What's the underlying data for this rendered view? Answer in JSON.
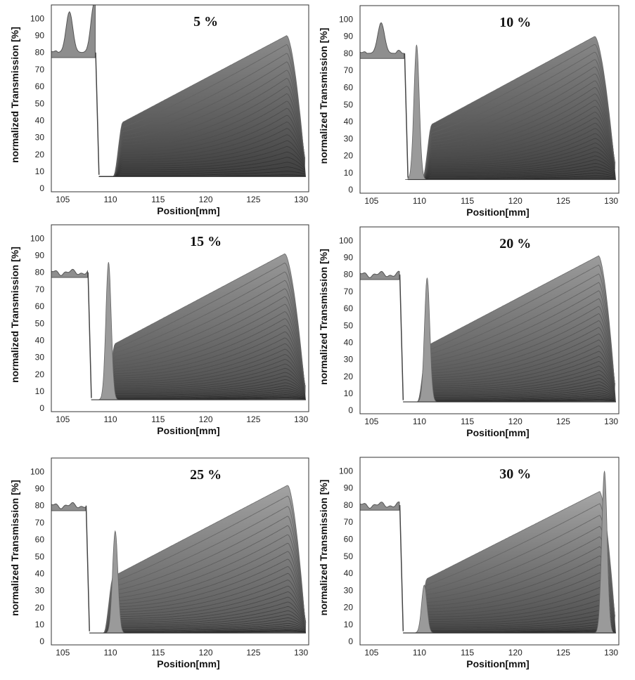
{
  "chart_data": [
    {
      "type": "line",
      "title": "5 %",
      "xlabel": "Position[mm]",
      "ylabel": "normalized Transmission [%]",
      "xlim": [
        103.8,
        130.8
      ],
      "ylim": [
        -2,
        108
      ],
      "xticks": [
        105,
        110,
        115,
        120,
        125,
        130
      ],
      "yticks": [
        0,
        10,
        20,
        30,
        40,
        50,
        60,
        70,
        80,
        90,
        100
      ],
      "profile": {
        "meniscus": 108.8,
        "base": 7,
        "peak_pos": 128.5,
        "peak_value": 90,
        "top_start": 68,
        "last_curve_start": 8,
        "n_curves": 22,
        "reference_peaks": [
          {
            "position": 105.7,
            "value": 104
          },
          {
            "position": 108.3,
            "value": 109
          }
        ],
        "fill_top": "#8d8d8d",
        "fill_bottom": "#3e3e3e"
      }
    },
    {
      "type": "line",
      "title": "10 %",
      "xlabel": "Position[mm]",
      "ylabel": "normalized Transmission [%]",
      "xlim": [
        103.8,
        130.8
      ],
      "ylim": [
        -2,
        108
      ],
      "xticks": [
        105,
        110,
        115,
        120,
        125,
        130
      ],
      "yticks": [
        0,
        10,
        20,
        30,
        40,
        50,
        60,
        70,
        80,
        90,
        100
      ],
      "profile": {
        "meniscus": 108.8,
        "base": 6,
        "peak_pos": 128.3,
        "peak_value": 90,
        "top_start": 55,
        "last_curve_start": 7,
        "n_curves": 28,
        "reference_peaks": [
          {
            "position": 106.0,
            "value": 98
          },
          {
            "position": 109.7,
            "value": 85
          }
        ],
        "fill_top": "#8a8a8a",
        "fill_bottom": "#3f3f3f"
      }
    },
    {
      "type": "line",
      "title": "15 %",
      "xlabel": "Position[mm]",
      "ylabel": "normalized Transmission [%]",
      "xlim": [
        103.8,
        130.8
      ],
      "ylim": [
        -2,
        108
      ],
      "xticks": [
        105,
        110,
        115,
        120,
        125,
        130
      ],
      "yticks": [
        0,
        10,
        20,
        30,
        40,
        50,
        60,
        70,
        80,
        90,
        100
      ],
      "profile": {
        "meniscus": 108.0,
        "base": 5,
        "peak_pos": 128.3,
        "peak_value": 91,
        "top_start": 25,
        "last_curve_start": 6,
        "n_curves": 30,
        "reference_peaks": [
          {
            "position": 109.8,
            "value": 86
          }
        ],
        "fill_top": "#9a9a9a",
        "fill_bottom": "#4a4a4a"
      }
    },
    {
      "type": "line",
      "title": "20 %",
      "xlabel": "Position[mm]",
      "ylabel": "normalized Transmission [%]",
      "xlim": [
        103.8,
        130.8
      ],
      "ylim": [
        -2,
        108
      ],
      "xticks": [
        105,
        110,
        115,
        120,
        125,
        130
      ],
      "yticks": [
        0,
        10,
        20,
        30,
        40,
        50,
        60,
        70,
        80,
        90,
        100
      ],
      "profile": {
        "meniscus": 108.3,
        "base": 5,
        "peak_pos": 128.7,
        "peak_value": 91,
        "top_start": 25,
        "last_curve_start": 6,
        "n_curves": 30,
        "reference_peaks": [
          {
            "position": 110.8,
            "value": 78
          }
        ],
        "fill_top": "#9c9c9c",
        "fill_bottom": "#4c4c4c"
      }
    },
    {
      "type": "line",
      "title": "25 %",
      "xlabel": "Position[mm]",
      "ylabel": "normalized Transmission [%]",
      "xlim": [
        103.8,
        130.8
      ],
      "ylim": [
        -2,
        108
      ],
      "xticks": [
        105,
        110,
        115,
        120,
        125,
        130
      ],
      "yticks": [
        0,
        10,
        20,
        30,
        40,
        50,
        60,
        70,
        80,
        90,
        100
      ],
      "profile": {
        "meniscus": 107.8,
        "base": 5,
        "peak_pos": 128.6,
        "peak_value": 92,
        "top_start": 13,
        "last_curve_start": 6,
        "n_curves": 28,
        "reference_peaks": [
          {
            "position": 110.5,
            "value": 65
          }
        ],
        "fill_top": "#a3a3a3",
        "fill_bottom": "#555555"
      }
    },
    {
      "type": "line",
      "title": "30 %",
      "xlabel": "Position[mm]",
      "ylabel": "normalized Transmission [%]",
      "xlim": [
        103.8,
        130.8
      ],
      "ylim": [
        -2,
        108
      ],
      "xticks": [
        105,
        110,
        115,
        120,
        125,
        130
      ],
      "yticks": [
        0,
        10,
        20,
        30,
        40,
        50,
        60,
        70,
        80,
        90,
        100
      ],
      "profile": {
        "meniscus": 108.3,
        "base": 5,
        "peak_pos": 128.8,
        "peak_value": 88,
        "top_start": 10,
        "last_curve_start": 6,
        "n_curves": 24,
        "reference_peaks": [
          {
            "position": 110.5,
            "value": 33
          },
          {
            "position": 129.3,
            "value": 100
          }
        ],
        "fill_top": "#a6a6a6",
        "fill_bottom": "#4a4a4a"
      }
    }
  ]
}
